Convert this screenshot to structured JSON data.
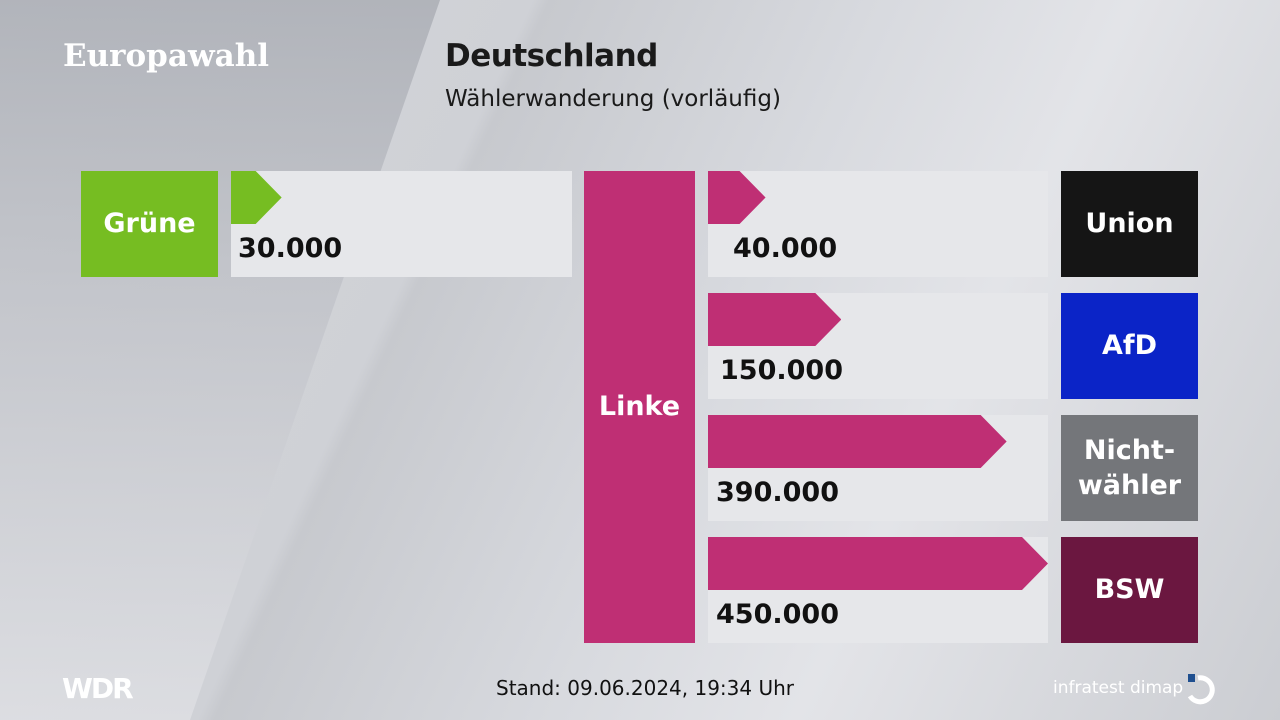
{
  "header": {
    "brand": "Europawahl",
    "title": "Deutschland",
    "subtitle": "Wählerwanderung (vorläufig)"
  },
  "footer": {
    "stand": "Stand: 09.06.2024, 19:34 Uhr",
    "left_logo": "WDR",
    "right_logo": "infratest dimap"
  },
  "colors": {
    "Grüne": "#76bd22",
    "Linke": "#bf2f74",
    "Union": "#151515",
    "AfD": "#0b24c7",
    "Nichtwähler": "#74767a",
    "BSW": "#6b1740"
  },
  "chart_data": {
    "type": "bar",
    "center_party": "Linke",
    "inflows": [
      {
        "from": "Grüne",
        "value": 30000,
        "label": "30.000"
      }
    ],
    "outflows": [
      {
        "to": "Union",
        "value": 40000,
        "label": "40.000"
      },
      {
        "to": "AfD",
        "value": 150000,
        "label": "150.000"
      },
      {
        "to": "Nicht-\nwähler",
        "value": 390000,
        "label": "390.000"
      },
      {
        "to": "BSW",
        "value": 450000,
        "label": "450.000"
      }
    ]
  }
}
